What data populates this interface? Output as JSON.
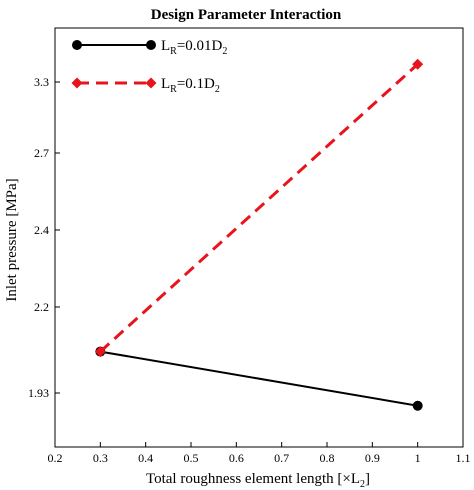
{
  "chart_data": {
    "type": "line",
    "title": "Design Parameter Interaction",
    "xlabel": {
      "main": "Total roughness element length [×L",
      "sub": "2",
      "tail": "]"
    },
    "ylabel": "Inlet pressure [MPa]",
    "xlim": [
      0.2,
      1.1
    ],
    "x_ticks": [
      0.2,
      0.3,
      0.4,
      0.5,
      0.6,
      0.7,
      0.8,
      0.9,
      1,
      1.1
    ],
    "x_tick_labels": [
      "0.2",
      "0.3",
      "0.4",
      "0.5",
      "0.6",
      "0.7",
      "0.8",
      "0.9",
      "1",
      "1.1"
    ],
    "y_ticks": [
      1.93,
      2.2,
      2.4,
      2.7,
      3.3
    ],
    "y_tick_labels": [
      "1.93",
      "2.2",
      "2.4",
      "2.7",
      "3.3"
    ],
    "grid": false,
    "legend_position": "top-left",
    "series": [
      {
        "legend": {
          "main": "L",
          "sub": "R",
          "mid": "=0.01D",
          "sub2": "2"
        },
        "color": "#000000",
        "line_style": "solid",
        "marker": "circle",
        "x": [
          0.3,
          1
        ],
        "y": [
          2.06,
          1.89
        ]
      },
      {
        "legend": {
          "main": "L",
          "sub": "R",
          "mid": "=0.1D",
          "sub2": "2"
        },
        "color": "#e8141c",
        "line_style": "dashed",
        "marker": "diamond",
        "x": [
          0.3,
          1
        ],
        "y": [
          2.06,
          3.45
        ]
      }
    ]
  }
}
